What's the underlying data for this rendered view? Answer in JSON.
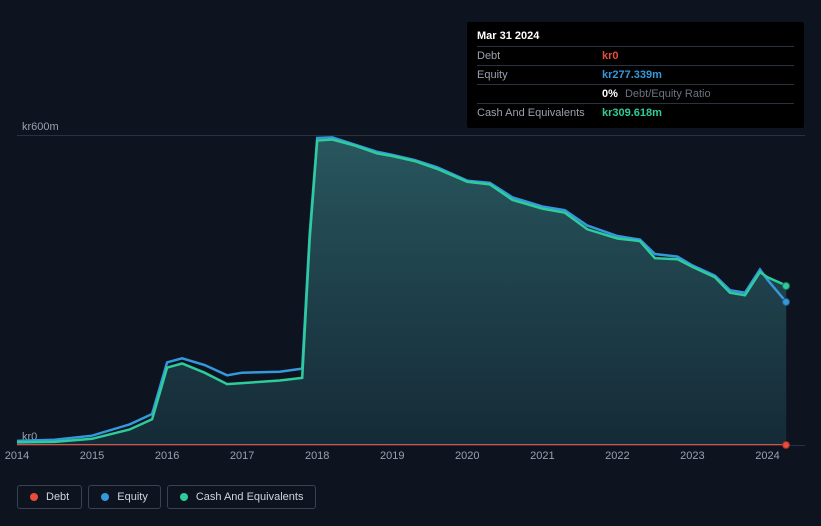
{
  "tooltip": {
    "title": "Mar 31 2024",
    "rows": [
      {
        "label": "Debt",
        "value": "kr0",
        "color": "#e74c3c"
      },
      {
        "label": "Equity",
        "value": "kr277.339m",
        "color": "#3498db"
      },
      {
        "label": "",
        "value": "0%",
        "secondary": "Debt/Equity Ratio",
        "color": "#ffffff"
      },
      {
        "label": "Cash And Equivalents",
        "value": "kr309.618m",
        "color": "#2ecc9a"
      }
    ]
  },
  "chart": {
    "type": "area",
    "background": "#0d1420",
    "grid_color": "#2a3140",
    "text_color": "#9ba0ae",
    "ylim": [
      0,
      620
    ],
    "ylabels": [
      {
        "v": 0,
        "text": "kr0"
      },
      {
        "v": 600,
        "text": "kr600m"
      }
    ],
    "xlim": [
      2014,
      2024.5
    ],
    "xticks": [
      2014,
      2015,
      2016,
      2017,
      2018,
      2019,
      2020,
      2021,
      2022,
      2023,
      2024
    ],
    "series": {
      "cash": {
        "color": "#2ecc9a",
        "fill_top": "#2a5a62",
        "fill_bottom": "#162f3b",
        "points": [
          [
            2014.0,
            5
          ],
          [
            2014.5,
            6
          ],
          [
            2015.0,
            12
          ],
          [
            2015.5,
            30
          ],
          [
            2015.8,
            50
          ],
          [
            2016.0,
            150
          ],
          [
            2016.2,
            158
          ],
          [
            2016.5,
            140
          ],
          [
            2016.8,
            118
          ],
          [
            2017.0,
            120
          ],
          [
            2017.5,
            125
          ],
          [
            2017.8,
            130
          ],
          [
            2017.9,
            400
          ],
          [
            2018.0,
            590
          ],
          [
            2018.2,
            592
          ],
          [
            2018.5,
            580
          ],
          [
            2018.8,
            565
          ],
          [
            2019.0,
            560
          ],
          [
            2019.3,
            550
          ],
          [
            2019.6,
            535
          ],
          [
            2020.0,
            510
          ],
          [
            2020.3,
            505
          ],
          [
            2020.6,
            475
          ],
          [
            2021.0,
            458
          ],
          [
            2021.3,
            450
          ],
          [
            2021.6,
            418
          ],
          [
            2022.0,
            400
          ],
          [
            2022.3,
            395
          ],
          [
            2022.5,
            362
          ],
          [
            2022.8,
            360
          ],
          [
            2023.0,
            345
          ],
          [
            2023.3,
            325
          ],
          [
            2023.5,
            295
          ],
          [
            2023.7,
            290
          ],
          [
            2023.9,
            335
          ],
          [
            2024.0,
            325
          ],
          [
            2024.25,
            309
          ]
        ]
      },
      "equity": {
        "color": "#3498db",
        "points": [
          [
            2014.0,
            8
          ],
          [
            2014.5,
            10
          ],
          [
            2015.0,
            18
          ],
          [
            2015.5,
            40
          ],
          [
            2015.8,
            60
          ],
          [
            2016.0,
            160
          ],
          [
            2016.2,
            168
          ],
          [
            2016.5,
            155
          ],
          [
            2016.8,
            135
          ],
          [
            2017.0,
            140
          ],
          [
            2017.5,
            142
          ],
          [
            2017.8,
            148
          ],
          [
            2017.9,
            410
          ],
          [
            2018.0,
            595
          ],
          [
            2018.2,
            596
          ],
          [
            2018.5,
            582
          ],
          [
            2018.8,
            568
          ],
          [
            2019.0,
            562
          ],
          [
            2019.3,
            552
          ],
          [
            2019.6,
            538
          ],
          [
            2020.0,
            512
          ],
          [
            2020.3,
            508
          ],
          [
            2020.6,
            480
          ],
          [
            2021.0,
            462
          ],
          [
            2021.3,
            455
          ],
          [
            2021.6,
            425
          ],
          [
            2022.0,
            405
          ],
          [
            2022.3,
            398
          ],
          [
            2022.5,
            370
          ],
          [
            2022.8,
            365
          ],
          [
            2023.0,
            348
          ],
          [
            2023.3,
            328
          ],
          [
            2023.5,
            300
          ],
          [
            2023.7,
            295
          ],
          [
            2023.9,
            340
          ],
          [
            2024.0,
            320
          ],
          [
            2024.25,
            277
          ]
        ]
      },
      "debt": {
        "color": "#e74c3c",
        "points": [
          [
            2014.0,
            0
          ],
          [
            2024.25,
            0
          ]
        ]
      }
    }
  },
  "legend": [
    {
      "label": "Debt",
      "color": "#e74c3c"
    },
    {
      "label": "Equity",
      "color": "#3498db"
    },
    {
      "label": "Cash And Equivalents",
      "color": "#2ecc9a"
    }
  ]
}
